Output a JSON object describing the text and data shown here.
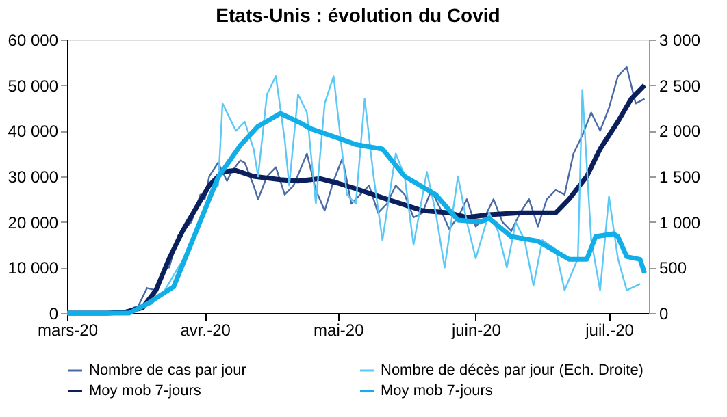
{
  "chart_data": {
    "type": "line",
    "title": "Etats-Unis : évolution du Covid",
    "xlim": [
      "2020-03-01",
      "2020-07-10"
    ],
    "xticks": [
      {
        "value": "2020-03-01",
        "label": "mars-20"
      },
      {
        "value": "2020-04-01",
        "label": "avr.-20"
      },
      {
        "value": "2020-05-01",
        "label": "mai-20"
      },
      {
        "value": "2020-06-01",
        "label": "juin-20"
      },
      {
        "value": "2020-07-01",
        "label": "juil.-20"
      }
    ],
    "ylim": [
      0,
      60000
    ],
    "yticks": [
      0,
      {
        "value": 10000,
        "label": "10 000"
      },
      {
        "value": 20000,
        "label": "20 000"
      },
      {
        "value": 30000,
        "label": "30 000"
      },
      {
        "value": 40000,
        "label": "40 000"
      },
      {
        "value": 50000,
        "label": "50 000"
      },
      {
        "value": 60000,
        "label": "60 000"
      }
    ],
    "y2lim": [
      0,
      3000
    ],
    "y2ticks": [
      0,
      500,
      {
        "value": 1000,
        "label": "1 000"
      },
      {
        "value": 1500,
        "label": "1 500"
      },
      {
        "value": 2000,
        "label": "2 000"
      },
      {
        "value": 2500,
        "label": "2 500"
      },
      {
        "value": 3000,
        "label": "3 000"
      }
    ],
    "grid": false,
    "legend": "bottom",
    "marker": "none",
    "line_style": "solid",
    "series": [
      {
        "name": "Nombre de cas par jour",
        "color": "#4a6aa5",
        "x": [
          "2020-03-01",
          "2020-03-10",
          "2020-03-14",
          "2020-03-16",
          "2020-03-17",
          "2020-03-19",
          "2020-03-21",
          "2020-03-23",
          "2020-03-24",
          "2020-03-26",
          "2020-03-28",
          "2020-03-29",
          "2020-03-31",
          "2020-04-01",
          "2020-04-02",
          "2020-04-04",
          "2020-04-06",
          "2020-04-07",
          "2020-04-09",
          "2020-04-10",
          "2020-04-12",
          "2020-04-13",
          "2020-04-15",
          "2020-04-17",
          "2020-04-19",
          "2020-04-21",
          "2020-04-24",
          "2020-04-26",
          "2020-04-28",
          "2020-04-30",
          "2020-05-02",
          "2020-05-04",
          "2020-05-06",
          "2020-05-08",
          "2020-05-10",
          "2020-05-12",
          "2020-05-14",
          "2020-05-16",
          "2020-05-18",
          "2020-05-20",
          "2020-05-22",
          "2020-05-24",
          "2020-05-26",
          "2020-05-28",
          "2020-05-30",
          "2020-06-01",
          "2020-06-03",
          "2020-06-05",
          "2020-06-07",
          "2020-06-09",
          "2020-06-11",
          "2020-06-13",
          "2020-06-15",
          "2020-06-17",
          "2020-06-19",
          "2020-06-21",
          "2020-06-23",
          "2020-06-25",
          "2020-06-27",
          "2020-06-29",
          "2020-07-01",
          "2020-07-03",
          "2020-07-05",
          "2020-07-07",
          "2020-07-09"
        ],
        "values": [
          0,
          0,
          300,
          1200,
          1500,
          5500,
          5000,
          10500,
          10000,
          17000,
          19000,
          20000,
          26000,
          25000,
          30000,
          33000,
          29000,
          31000,
          33500,
          33000,
          28000,
          25000,
          30000,
          32000,
          26000,
          28000,
          35000,
          27000,
          22500,
          29000,
          34000,
          24000,
          26000,
          28000,
          22000,
          24000,
          28000,
          26000,
          21000,
          22000,
          27000,
          23000,
          18500,
          21000,
          25000,
          19000,
          21000,
          25000,
          20000,
          18000,
          22000,
          25000,
          19000,
          25000,
          27000,
          26000,
          35000,
          39000,
          44000,
          40000,
          45000,
          52000,
          54000,
          46000,
          47000
        ]
      },
      {
        "name": "Nombre de décès par jour (Ech. Droite)",
        "color": "#5bc8f5",
        "axis": "y2",
        "x": [
          "2020-03-01",
          "2020-03-15",
          "2020-03-20",
          "2020-03-23",
          "2020-03-26",
          "2020-03-28",
          "2020-03-30",
          "2020-04-01",
          "2020-04-02",
          "2020-04-04",
          "2020-04-05",
          "2020-04-08",
          "2020-04-10",
          "2020-04-12",
          "2020-04-13",
          "2020-04-15",
          "2020-04-17",
          "2020-04-19",
          "2020-04-20",
          "2020-04-22",
          "2020-04-24",
          "2020-04-26",
          "2020-04-28",
          "2020-04-30",
          "2020-05-03",
          "2020-05-05",
          "2020-05-07",
          "2020-05-09",
          "2020-05-11",
          "2020-05-14",
          "2020-05-16",
          "2020-05-18",
          "2020-05-21",
          "2020-05-23",
          "2020-05-25",
          "2020-05-28",
          "2020-05-30",
          "2020-06-01",
          "2020-06-04",
          "2020-06-06",
          "2020-06-08",
          "2020-06-10",
          "2020-06-12",
          "2020-06-14",
          "2020-06-16",
          "2020-06-19",
          "2020-06-21",
          "2020-06-24",
          "2020-06-25",
          "2020-06-27",
          "2020-06-29",
          "2020-07-01",
          "2020-07-03",
          "2020-07-05",
          "2020-07-08"
        ],
        "values": [
          0,
          0,
          100,
          250,
          500,
          650,
          900,
          1100,
          1300,
          1400,
          2300,
          2000,
          2100,
          1800,
          1500,
          2400,
          2600,
          1900,
          1400,
          2400,
          2200,
          1200,
          2300,
          2600,
          1300,
          1200,
          2350,
          1500,
          800,
          1750,
          1500,
          750,
          1550,
          1100,
          500,
          1500,
          1000,
          600,
          1100,
          900,
          500,
          1000,
          800,
          300,
          800,
          700,
          250,
          600,
          2450,
          800,
          250,
          1280,
          600,
          250,
          320
        ]
      },
      {
        "name": "Moy mob 7-jours",
        "color": "#0b1f5c",
        "x": [
          "2020-03-01",
          "2020-03-10",
          "2020-03-14",
          "2020-03-18",
          "2020-03-21",
          "2020-03-24",
          "2020-03-27",
          "2020-03-30",
          "2020-04-02",
          "2020-04-05",
          "2020-04-08",
          "2020-04-12",
          "2020-04-18",
          "2020-04-22",
          "2020-04-27",
          "2020-05-01",
          "2020-05-05",
          "2020-05-12",
          "2020-05-20",
          "2020-05-26",
          "2020-05-30",
          "2020-06-04",
          "2020-06-11",
          "2020-06-16",
          "2020-06-19",
          "2020-06-22",
          "2020-06-26",
          "2020-06-29",
          "2020-07-03",
          "2020-07-06",
          "2020-07-09"
        ],
        "values": [
          0,
          0,
          200,
          1200,
          5000,
          12000,
          18000,
          23000,
          28000,
          31000,
          31300,
          30000,
          29300,
          29000,
          29500,
          28500,
          27300,
          25000,
          22500,
          22000,
          21000,
          21600,
          22000,
          22000,
          22000,
          25000,
          30000,
          36000,
          42000,
          47000,
          50000
        ]
      },
      {
        "name": "Moy mob 7-jours",
        "color": "#12aee8",
        "axis": "y2",
        "x": [
          "2020-03-01",
          "2020-03-15",
          "2020-03-19",
          "2020-03-25",
          "2020-03-30",
          "2020-04-04",
          "2020-04-09",
          "2020-04-13",
          "2020-04-18",
          "2020-04-22",
          "2020-04-25",
          "2020-05-01",
          "2020-05-05",
          "2020-05-11",
          "2020-05-16",
          "2020-05-23",
          "2020-05-28",
          "2020-06-02",
          "2020-06-04",
          "2020-06-09",
          "2020-06-15",
          "2020-06-22",
          "2020-06-26",
          "2020-06-28",
          "2020-07-02",
          "2020-07-03",
          "2020-07-05",
          "2020-07-08",
          "2020-07-09"
        ],
        "values": [
          0,
          0,
          100,
          290,
          890,
          1490,
          1840,
          2050,
          2190,
          2100,
          2020,
          1920,
          1850,
          1800,
          1500,
          1300,
          1020,
          1000,
          1040,
          840,
          790,
          590,
          590,
          840,
          870,
          840,
          620,
          590,
          440
        ]
      }
    ]
  }
}
